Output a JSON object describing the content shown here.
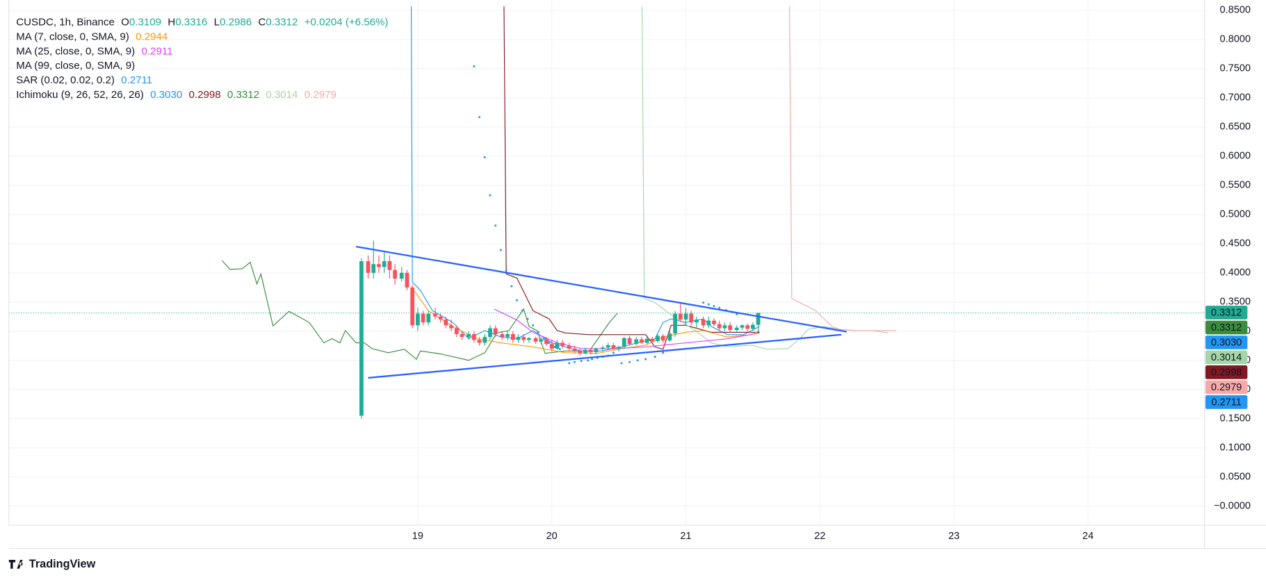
{
  "legend": {
    "symbol": "CUSDC, 1h, Binance",
    "ohlc": [
      {
        "key": "O",
        "value": 0.3109
      },
      {
        "key": "H",
        "value": 0.3316
      },
      {
        "key": "L",
        "value": 0.2986
      },
      {
        "key": "C",
        "value": 0.3312
      }
    ],
    "change": "+0.0204 (+6.56%)",
    "indicators": [
      {
        "label": "MA (7, close, 0, SMA, 9)",
        "readouts": [
          {
            "value": 0.2944,
            "color": "#ff9800"
          }
        ]
      },
      {
        "label": "MA (25, close, 0, SMA, 9)",
        "readouts": [
          {
            "value": 0.2911,
            "color": "#e040fb"
          }
        ]
      },
      {
        "label": "MA (99, close, 0, SMA, 9)",
        "readouts": []
      },
      {
        "label": "SAR (0.02, 0.02, 0.2)",
        "readouts": [
          {
            "value": 0.2711,
            "color": "#2196f3"
          }
        ]
      },
      {
        "label": "Ichimoku (9, 26, 52, 26, 26)",
        "readouts": [
          {
            "value": 0.303,
            "label": "0.3030",
            "color": "#2196f3"
          },
          {
            "value": 0.2998,
            "color": "#801922"
          },
          {
            "value": 0.3312,
            "color": "#388e3c"
          },
          {
            "value": 0.3014,
            "color": "#a5d6a7"
          },
          {
            "value": 0.2979,
            "color": "#f7a9a7"
          }
        ]
      }
    ]
  },
  "chart_data": {
    "type": "candlestick",
    "x": [
      18.58,
      18.63,
      18.67,
      18.71,
      18.75,
      18.79,
      18.83,
      18.88,
      18.92,
      18.96,
      19,
      19.04,
      19.08,
      19.13,
      19.17,
      19.21,
      19.25,
      19.29,
      19.33,
      19.38,
      19.42,
      19.46,
      19.5,
      19.54,
      19.58,
      19.63,
      19.67,
      19.71,
      19.75,
      19.79,
      19.83,
      19.88,
      19.92,
      19.96,
      20,
      20.04,
      20.08,
      20.13,
      20.17,
      20.21,
      20.25,
      20.29,
      20.33,
      20.38,
      20.42,
      20.46,
      20.5,
      20.54,
      20.58,
      20.63,
      20.67,
      20.71,
      20.75,
      20.79,
      20.83,
      20.88,
      20.92,
      20.96,
      21,
      21.04,
      21.08,
      21.13,
      21.17,
      21.21,
      21.25,
      21.29,
      21.33,
      21.38,
      21.42,
      21.46,
      21.5,
      21.54
    ],
    "open": [
      0.155,
      0.42,
      0.4,
      0.415,
      0.41,
      0.42,
      0.405,
      0.39,
      0.4,
      0.375,
      0.31,
      0.33,
      0.315,
      0.33,
      0.325,
      0.32,
      0.31,
      0.305,
      0.295,
      0.29,
      0.295,
      0.285,
      0.28,
      0.29,
      0.305,
      0.295,
      0.29,
      0.295,
      0.285,
      0.29,
      0.285,
      0.288,
      0.282,
      0.286,
      0.278,
      0.27,
      0.28,
      0.275,
      0.27,
      0.266,
      0.262,
      0.268,
      0.264,
      0.27,
      0.272,
      0.276,
      0.27,
      0.273,
      0.288,
      0.278,
      0.286,
      0.28,
      0.287,
      0.283,
      0.292,
      0.284,
      0.296,
      0.33,
      0.32,
      0.33,
      0.315,
      0.32,
      0.31,
      0.318,
      0.312,
      0.305,
      0.31,
      0.302,
      0.306,
      0.31,
      0.304,
      0.3109
    ],
    "high": [
      0.425,
      0.43,
      0.455,
      0.43,
      0.435,
      0.43,
      0.415,
      0.41,
      0.405,
      0.38,
      0.34,
      0.335,
      0.335,
      0.34,
      0.33,
      0.325,
      0.32,
      0.31,
      0.3,
      0.3,
      0.3,
      0.29,
      0.295,
      0.31,
      0.31,
      0.3,
      0.3,
      0.3,
      0.295,
      0.295,
      0.29,
      0.29,
      0.29,
      0.29,
      0.285,
      0.285,
      0.285,
      0.28,
      0.275,
      0.27,
      0.272,
      0.27,
      0.272,
      0.275,
      0.28,
      0.28,
      0.275,
      0.29,
      0.292,
      0.29,
      0.29,
      0.29,
      0.29,
      0.295,
      0.295,
      0.3,
      0.335,
      0.35,
      0.34,
      0.335,
      0.325,
      0.325,
      0.325,
      0.322,
      0.318,
      0.315,
      0.315,
      0.31,
      0.312,
      0.313,
      0.315,
      0.3316
    ],
    "low": [
      0.15,
      0.39,
      0.39,
      0.4,
      0.4,
      0.39,
      0.38,
      0.385,
      0.37,
      0.305,
      0.3,
      0.31,
      0.31,
      0.32,
      0.315,
      0.305,
      0.3,
      0.29,
      0.285,
      0.285,
      0.28,
      0.275,
      0.275,
      0.285,
      0.29,
      0.285,
      0.285,
      0.28,
      0.28,
      0.28,
      0.28,
      0.278,
      0.278,
      0.275,
      0.265,
      0.268,
      0.27,
      0.265,
      0.262,
      0.258,
      0.26,
      0.26,
      0.26,
      0.265,
      0.268,
      0.268,
      0.265,
      0.27,
      0.275,
      0.276,
      0.278,
      0.278,
      0.28,
      0.28,
      0.28,
      0.282,
      0.29,
      0.315,
      0.31,
      0.31,
      0.305,
      0.305,
      0.305,
      0.308,
      0.3,
      0.3,
      0.298,
      0.298,
      0.302,
      0.3,
      0.3,
      0.2986
    ],
    "close": [
      0.42,
      0.4,
      0.415,
      0.41,
      0.42,
      0.405,
      0.39,
      0.4,
      0.375,
      0.31,
      0.33,
      0.315,
      0.33,
      0.325,
      0.32,
      0.31,
      0.305,
      0.295,
      0.29,
      0.295,
      0.285,
      0.28,
      0.29,
      0.305,
      0.295,
      0.29,
      0.295,
      0.285,
      0.29,
      0.285,
      0.288,
      0.282,
      0.286,
      0.278,
      0.27,
      0.28,
      0.275,
      0.27,
      0.266,
      0.262,
      0.268,
      0.264,
      0.27,
      0.272,
      0.276,
      0.27,
      0.273,
      0.288,
      0.278,
      0.286,
      0.28,
      0.287,
      0.283,
      0.292,
      0.284,
      0.296,
      0.33,
      0.32,
      0.33,
      0.315,
      0.32,
      0.31,
      0.318,
      0.312,
      0.305,
      0.31,
      0.302,
      0.306,
      0.31,
      0.304,
      0.3109,
      0.3312
    ],
    "up_color": "#22ab94",
    "down_color": "#f7525f",
    "xlim": [
      15.95,
      24.87
    ],
    "xticks": [
      19,
      20,
      21,
      22,
      23,
      24
    ],
    "ylim": [
      -0.0326,
      0.8567
    ],
    "yticks": [
      {
        "value": 0.85,
        "label": "0.8500"
      },
      {
        "value": 0.8,
        "label": "0.8000"
      },
      {
        "value": 0.75,
        "label": "0.7500"
      },
      {
        "value": 0.7,
        "label": "0.7000"
      },
      {
        "value": 0.65,
        "label": "0.6500"
      },
      {
        "value": 0.6,
        "label": "0.6000"
      },
      {
        "value": 0.55,
        "label": "0.5500"
      },
      {
        "value": 0.5,
        "label": "0.5000"
      },
      {
        "value": 0.45,
        "label": "0.4500"
      },
      {
        "value": 0.4,
        "label": "0.4000"
      },
      {
        "value": 0.35,
        "label": "0.3500"
      },
      {
        "value": 0.3,
        "label": "0.3000"
      },
      {
        "value": 0.25,
        "label": "0.2500"
      },
      {
        "value": 0.2,
        "label": "0.2000"
      },
      {
        "value": 0.15,
        "label": "0.1500"
      },
      {
        "value": 0.1,
        "label": "0.1000"
      },
      {
        "value": 0.05,
        "label": "0.0500"
      },
      {
        "value": 0,
        "label": "−0.0000"
      }
    ],
    "grid": true,
    "lines": {
      "lagging": {
        "color": "#388e3c",
        "x": [
          17.54,
          17.6,
          17.69,
          17.75,
          17.8,
          17.83,
          17.92,
          18.04,
          18.19,
          18.3,
          18.36,
          18.42,
          18.46,
          18.54,
          18.6,
          18.66,
          18.78,
          18.9,
          18.99,
          19.02,
          19.17,
          19.38,
          19.5,
          19.59,
          19.68,
          19.79,
          19.83,
          19.89,
          19.95,
          20.1,
          20.28,
          20.43,
          20.49
        ],
        "values": [
          0.421,
          0.406,
          0.407,
          0.418,
          0.381,
          0.398,
          0.309,
          0.334,
          0.315,
          0.28,
          0.287,
          0.28,
          0.301,
          0.28,
          0.28,
          0.27,
          0.263,
          0.269,
          0.252,
          0.266,
          0.261,
          0.25,
          0.263,
          0.297,
          0.301,
          0.338,
          0.308,
          0.301,
          0.262,
          0.266,
          0.266,
          0.315,
          0.331
        ]
      },
      "conversion": {
        "color": "#2196f3",
        "x": [
          18.95,
          18.96,
          19.02,
          19.11,
          19.26,
          19.38,
          19.5,
          19.62,
          19.74,
          19.86,
          20,
          20.1,
          20.22,
          20.37,
          20.52,
          20.64,
          20.77,
          20.83,
          20.89,
          21,
          21.13,
          21.19,
          21.31,
          21.43,
          21.55
        ],
        "values": [
          0.95,
          0.384,
          0.37,
          0.335,
          0.315,
          0.287,
          0.301,
          0.29,
          0.287,
          0.301,
          0.28,
          0.273,
          0.266,
          0.266,
          0.273,
          0.28,
          0.287,
          0.315,
          0.321,
          0.315,
          0.321,
          0.308,
          0.294,
          0.294,
          0.308
        ]
      },
      "base": {
        "color": "#801922",
        "x": [
          19.64,
          19.66,
          19.74,
          19.86,
          19.98,
          20.04,
          20.1,
          20.28,
          20.46,
          20.7,
          20.77,
          20.83,
          20.89,
          21,
          21.19,
          21.55
        ],
        "values": [
          0.95,
          0.398,
          0.391,
          0.335,
          0.321,
          0.301,
          0.297,
          0.294,
          0.294,
          0.294,
          0.273,
          0.269,
          0.31,
          0.31,
          0.298,
          0.298
        ]
      },
      "span_a": {
        "color": "#a5d6a7",
        "x": [
          20.67,
          20.69,
          20.77,
          20.89,
          21.07,
          21.19,
          21.31,
          21.49,
          21.61,
          21.76,
          21.85,
          21.91,
          22.03,
          22.15,
          22.27,
          22.39,
          22.51
        ],
        "values": [
          0.95,
          0.356,
          0.349,
          0.328,
          0.301,
          0.28,
          0.273,
          0.276,
          0.269,
          0.27,
          0.287,
          0.303,
          0.308,
          0.303,
          0.301,
          0.301,
          0.297
        ]
      },
      "span_b": {
        "color": "#f7a9a7",
        "x": [
          21.77,
          21.79,
          21.85,
          21.91,
          21.97,
          22.03,
          22.09,
          22.15,
          22.27,
          22.39,
          22.51,
          22.57
        ],
        "values": [
          0.95,
          0.356,
          0.349,
          0.342,
          0.335,
          0.321,
          0.308,
          0.303,
          0.301,
          0.301,
          0.301,
          0.301
        ]
      },
      "ma7": {
        "color": "#ff9800",
        "x": [
          18.97,
          19.08,
          19.26,
          19.44,
          19.62,
          19.86,
          20.1,
          20.34,
          20.52,
          20.7,
          20.83,
          21,
          21.13,
          21.31,
          21.49,
          21.55
        ],
        "values": [
          0.37,
          0.335,
          0.308,
          0.287,
          0.28,
          0.273,
          0.263,
          0.262,
          0.27,
          0.276,
          0.29,
          0.298,
          0.301,
          0.29,
          0.294,
          0.301
        ]
      },
      "ma25": {
        "color": "#e040fb",
        "x": [
          19.57,
          19.74,
          19.86,
          20.04,
          20.22,
          20.46,
          20.7,
          21,
          21.31,
          21.55
        ],
        "values": [
          0.338,
          0.319,
          0.298,
          0.28,
          0.27,
          0.27,
          0.273,
          0.28,
          0.287,
          0.297
        ]
      }
    },
    "sar": {
      "color": "#2196f3",
      "x": [
        19.42,
        19.46,
        19.5,
        19.54,
        19.58,
        19.62,
        19.66,
        19.7,
        19.74,
        19.78,
        19.82,
        19.86,
        19.9,
        19.94,
        19.98,
        20.02,
        20.06,
        20.13,
        20.17,
        20.22,
        20.27,
        20.3,
        20.34,
        20.38,
        20.42,
        20.46,
        20.52,
        20.58,
        20.64,
        20.7,
        20.77,
        20.83,
        21.13,
        21.17,
        21.21,
        21.25,
        21.3,
        21.34,
        21.38
      ],
      "values": [
        0.754,
        0.667,
        0.598,
        0.533,
        0.481,
        0.439,
        0.404,
        0.377,
        0.353,
        0.335,
        0.321,
        0.31,
        0.298,
        0.287,
        0.28,
        0.273,
        0.269,
        0.245,
        0.247,
        0.249,
        0.25,
        0.252,
        0.254,
        0.256,
        0.258,
        0.263,
        0.245,
        0.247,
        0.25,
        0.252,
        0.256,
        0.263,
        0.349,
        0.346,
        0.343,
        0.34,
        0.336,
        0.333,
        0.329
      ]
    },
    "trendlines": [
      {
        "color": "#2962ff",
        "x": [
          18.54,
          22.2
        ],
        "values": [
          0.445,
          0.299
        ]
      },
      {
        "color": "#2962ff",
        "x": [
          18.63,
          22.16
        ],
        "values": [
          0.22,
          0.294
        ]
      }
    ]
  },
  "branding": "TradingView"
}
